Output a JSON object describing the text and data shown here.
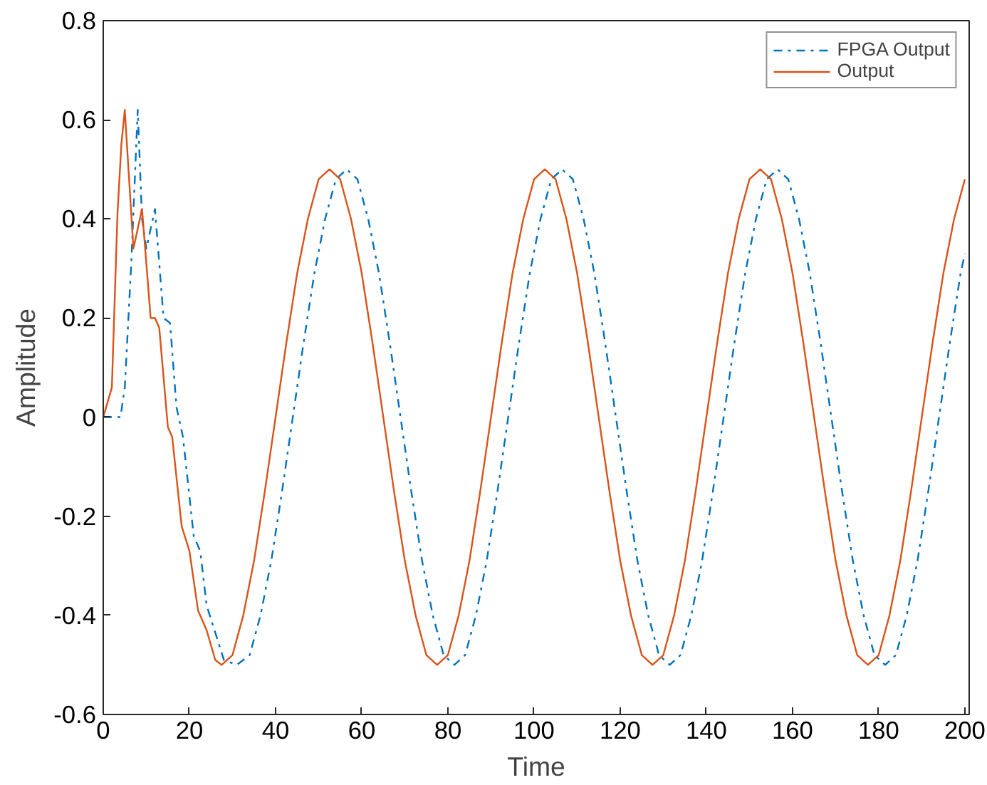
{
  "chart_data": {
    "type": "line",
    "xlabel": "Time",
    "ylabel": "Amplitude",
    "xlim": [
      0,
      201
    ],
    "ylim": [
      -0.6,
      0.8
    ],
    "xticks": [
      0,
      20,
      40,
      60,
      80,
      100,
      120,
      140,
      160,
      180,
      200
    ],
    "yticks": [
      -0.6,
      -0.4,
      -0.2,
      0,
      0.2,
      0.4,
      0.6,
      0.8
    ],
    "grid": false,
    "legend": "top right",
    "marker": "none",
    "series": [
      {
        "name": "FPGA Output",
        "color": "#0072bd",
        "line_style": "dashdot",
        "x": [
          0,
          4,
          5,
          6.5,
          8,
          9,
          10,
          12,
          14,
          15.5,
          17,
          18.5,
          21,
          22.5,
          24,
          28,
          31,
          34,
          36.5,
          39,
          41.5,
          44,
          46.5,
          49,
          51.5,
          54,
          56.5,
          59,
          61.5,
          64,
          66.5,
          69,
          71.5,
          74,
          76.5,
          79,
          81.5,
          84,
          86.5,
          89,
          91.5,
          94,
          96.5,
          99,
          101.5,
          104,
          106.5,
          109,
          111.5,
          114,
          116.5,
          119,
          121.5,
          124,
          126.5,
          129,
          131.5,
          134,
          136.5,
          139,
          141.5,
          144,
          146.5,
          149,
          151.5,
          154,
          156.5,
          159,
          161.5,
          164,
          166.5,
          169,
          171.5,
          174,
          176.5,
          179,
          181.5,
          184,
          186.5,
          189,
          191.5,
          194,
          196.5,
          199,
          200
        ],
        "values": [
          0,
          0,
          0.06,
          0.31,
          0.62,
          0.4,
          0.34,
          0.42,
          0.2,
          0.19,
          0.02,
          -0.04,
          -0.24,
          -0.27,
          -0.38,
          -0.49,
          -0.5,
          -0.48,
          -0.4,
          -0.29,
          -0.15,
          0,
          0.15,
          0.29,
          0.4,
          0.48,
          0.5,
          0.48,
          0.4,
          0.29,
          0.15,
          0,
          -0.15,
          -0.29,
          -0.4,
          -0.48,
          -0.5,
          -0.48,
          -0.4,
          -0.29,
          -0.15,
          0,
          0.15,
          0.29,
          0.4,
          0.48,
          0.5,
          0.48,
          0.4,
          0.29,
          0.15,
          0,
          -0.15,
          -0.29,
          -0.4,
          -0.48,
          -0.5,
          -0.48,
          -0.4,
          -0.29,
          -0.15,
          0,
          0.15,
          0.29,
          0.4,
          0.48,
          0.5,
          0.48,
          0.4,
          0.29,
          0.15,
          0,
          -0.15,
          -0.29,
          -0.4,
          -0.48,
          -0.5,
          -0.48,
          -0.4,
          -0.29,
          -0.15,
          0,
          0.15,
          0.29,
          0.33
        ]
      },
      {
        "name": "Output",
        "color": "#d95319",
        "line_style": "solid",
        "x": [
          0,
          2,
          3.3,
          4.2,
          5,
          7,
          9,
          11,
          12,
          13,
          15,
          16,
          18.2,
          20,
          22,
          24,
          26,
          27.5,
          30,
          32.5,
          35,
          37.5,
          40,
          42.5,
          45,
          47.5,
          50,
          52.5,
          55,
          57.5,
          60,
          62.5,
          65,
          67.5,
          70,
          72.5,
          75,
          77.5,
          80,
          82.5,
          85,
          87.5,
          90,
          92.5,
          95,
          97.5,
          100,
          102.5,
          105,
          107.5,
          110,
          112.5,
          115,
          117.5,
          120,
          122.5,
          125,
          127.5,
          130,
          132.5,
          135,
          137.5,
          140,
          142.5,
          145,
          147.5,
          150,
          152.5,
          155,
          157.5,
          160,
          162.5,
          165,
          167.5,
          170,
          172.5,
          175,
          177.5,
          180,
          182.5,
          185,
          187.5,
          190,
          192.5,
          195,
          197.5,
          200
        ],
        "values": [
          0,
          0.06,
          0.41,
          0.55,
          0.62,
          0.34,
          0.42,
          0.2,
          0.2,
          0.18,
          -0.02,
          -0.04,
          -0.22,
          -0.27,
          -0.39,
          -0.43,
          -0.49,
          -0.5,
          -0.48,
          -0.4,
          -0.29,
          -0.15,
          0,
          0.15,
          0.29,
          0.4,
          0.48,
          0.5,
          0.48,
          0.4,
          0.29,
          0.15,
          0,
          -0.15,
          -0.29,
          -0.4,
          -0.48,
          -0.5,
          -0.48,
          -0.4,
          -0.29,
          -0.15,
          0,
          0.15,
          0.29,
          0.4,
          0.48,
          0.5,
          0.48,
          0.4,
          0.29,
          0.15,
          0,
          -0.15,
          -0.29,
          -0.4,
          -0.48,
          -0.5,
          -0.48,
          -0.4,
          -0.29,
          -0.15,
          0,
          0.15,
          0.29,
          0.4,
          0.48,
          0.5,
          0.48,
          0.4,
          0.29,
          0.15,
          0,
          -0.15,
          -0.29,
          -0.4,
          -0.48,
          -0.5,
          -0.48,
          -0.4,
          -0.29,
          -0.15,
          0,
          0.15,
          0.29,
          0.4,
          0.48
        ]
      }
    ]
  }
}
